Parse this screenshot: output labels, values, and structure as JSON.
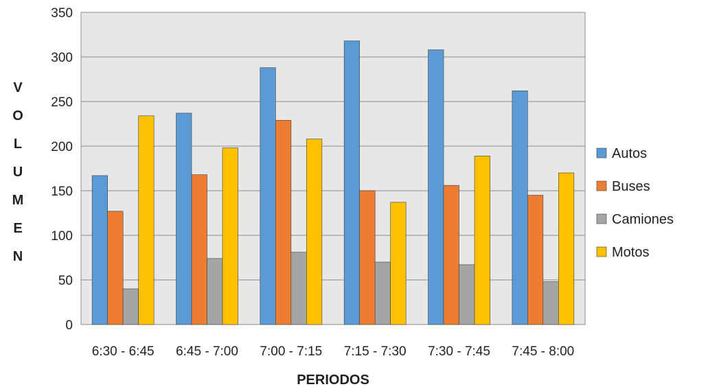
{
  "chart_data": {
    "type": "bar",
    "title": "",
    "xlabel": "PERIODOS",
    "ylabel": "VOLUMEN",
    "ylim": [
      0,
      350
    ],
    "yticks": [
      0,
      50,
      100,
      150,
      200,
      250,
      300,
      350
    ],
    "grid": true,
    "legend_position": "right",
    "categories": [
      "6:30 - 6:45",
      "6:45 - 7:00",
      "7:00 - 7:15",
      "7:15 - 7:30",
      "7:30 - 7:45",
      "7:45 - 8:00"
    ],
    "series": [
      {
        "name": "Autos",
        "color": "#5B9BD5",
        "values": [
          167,
          237,
          288,
          318,
          308,
          262
        ]
      },
      {
        "name": "Buses",
        "color": "#ED7D31",
        "values": [
          127,
          168,
          229,
          150,
          156,
          145
        ]
      },
      {
        "name": "Camiones",
        "color": "#A5A5A5",
        "values": [
          40,
          74,
          81,
          70,
          67,
          48
        ]
      },
      {
        "name": "Motos",
        "color": "#FFC000",
        "values": [
          234,
          198,
          208,
          137,
          189,
          170
        ]
      }
    ],
    "plot_background": "#E7E7E7"
  }
}
